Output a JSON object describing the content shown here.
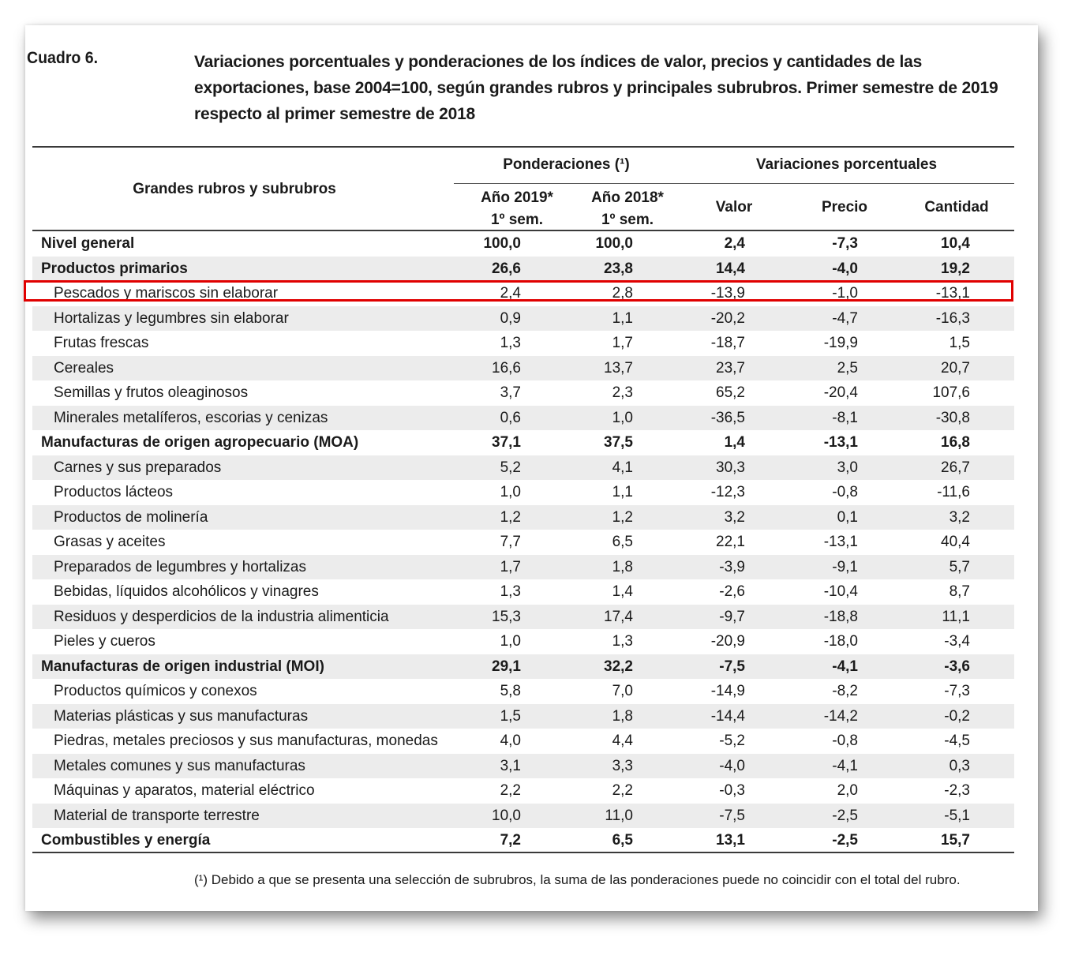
{
  "caption": {
    "label": "Cuadro 6.",
    "title": "Variaciones porcentuales y ponderaciones de los índices de valor, precios y cantidades de las exportaciones, base 2004=100, según grandes rubros y principales subrubros. Primer semestre de 2019 respecto al primer semestre de 2018"
  },
  "headers": {
    "rubros": "Grandes rubros y subrubros",
    "ponderaciones": "Ponderaciones (¹)",
    "variaciones": "Variaciones porcentuales",
    "anio2019": "Año 2019*",
    "anio2019_sub": "1º sem.",
    "anio2018": "Año 2018*",
    "anio2018_sub": "1º sem.",
    "valor": "Valor",
    "precio": "Precio",
    "cantidad": "Cantidad"
  },
  "rows": [
    {
      "name": "Nivel general",
      "level": "main",
      "p2019": "100,0",
      "p2018": "100,0",
      "valor": "2,4",
      "precio": "-7,3",
      "cantidad": "10,4"
    },
    {
      "name": "Productos primarios",
      "level": "main",
      "p2019": "26,6",
      "p2018": "23,8",
      "valor": "14,4",
      "precio": "-4,0",
      "cantidad": "19,2"
    },
    {
      "name": "Pescados y mariscos sin elaborar",
      "level": "sub",
      "p2019": "2,4",
      "p2018": "2,8",
      "valor": "-13,9",
      "precio": "-1,0",
      "cantidad": "-13,1"
    },
    {
      "name": "Hortalizas y legumbres sin elaborar",
      "level": "sub",
      "p2019": "0,9",
      "p2018": "1,1",
      "valor": "-20,2",
      "precio": "-4,7",
      "cantidad": "-16,3"
    },
    {
      "name": "Frutas frescas",
      "level": "sub",
      "p2019": "1,3",
      "p2018": "1,7",
      "valor": "-18,7",
      "precio": "-19,9",
      "cantidad": "1,5"
    },
    {
      "name": "Cereales",
      "level": "sub",
      "p2019": "16,6",
      "p2018": "13,7",
      "valor": "23,7",
      "precio": "2,5",
      "cantidad": "20,7"
    },
    {
      "name": "Semillas y frutos oleaginosos",
      "level": "sub",
      "p2019": "3,7",
      "p2018": "2,3",
      "valor": "65,2",
      "precio": "-20,4",
      "cantidad": "107,6"
    },
    {
      "name": "Minerales metalíferos, escorias y cenizas",
      "level": "sub",
      "p2019": "0,6",
      "p2018": "1,0",
      "valor": "-36,5",
      "precio": "-8,1",
      "cantidad": "-30,8"
    },
    {
      "name": "Manufacturas de origen agropecuario (MOA)",
      "level": "main",
      "p2019": "37,1",
      "p2018": "37,5",
      "valor": "1,4",
      "precio": "-13,1",
      "cantidad": "16,8"
    },
    {
      "name": "Carnes y sus preparados",
      "level": "sub",
      "p2019": "5,2",
      "p2018": "4,1",
      "valor": "30,3",
      "precio": "3,0",
      "cantidad": "26,7"
    },
    {
      "name": "Productos lácteos",
      "level": "sub",
      "p2019": "1,0",
      "p2018": "1,1",
      "valor": "-12,3",
      "precio": "-0,8",
      "cantidad": "-11,6"
    },
    {
      "name": "Productos de molinería",
      "level": "sub",
      "p2019": "1,2",
      "p2018": "1,2",
      "valor": "3,2",
      "precio": "0,1",
      "cantidad": "3,2"
    },
    {
      "name": "Grasas y aceites",
      "level": "sub",
      "p2019": "7,7",
      "p2018": "6,5",
      "valor": "22,1",
      "precio": "-13,1",
      "cantidad": "40,4"
    },
    {
      "name": "Preparados de legumbres y hortalizas",
      "level": "sub",
      "p2019": "1,7",
      "p2018": "1,8",
      "valor": "-3,9",
      "precio": "-9,1",
      "cantidad": "5,7"
    },
    {
      "name": "Bebidas, líquidos alcohólicos y vinagres",
      "level": "sub",
      "p2019": "1,3",
      "p2018": "1,4",
      "valor": "-2,6",
      "precio": "-10,4",
      "cantidad": "8,7"
    },
    {
      "name": "Residuos y desperdicios de la industria alimenticia",
      "level": "sub",
      "p2019": "15,3",
      "p2018": "17,4",
      "valor": "-9,7",
      "precio": "-18,8",
      "cantidad": "11,1"
    },
    {
      "name": "Pieles y cueros",
      "level": "sub",
      "p2019": "1,0",
      "p2018": "1,3",
      "valor": "-20,9",
      "precio": "-18,0",
      "cantidad": "-3,4"
    },
    {
      "name": "Manufacturas de origen industrial (MOI)",
      "level": "main",
      "p2019": "29,1",
      "p2018": "32,2",
      "valor": "-7,5",
      "precio": "-4,1",
      "cantidad": "-3,6"
    },
    {
      "name": "Productos químicos y conexos",
      "level": "sub",
      "p2019": "5,8",
      "p2018": "7,0",
      "valor": "-14,9",
      "precio": "-8,2",
      "cantidad": "-7,3"
    },
    {
      "name": "Materias plásticas y sus manufacturas",
      "level": "sub",
      "p2019": "1,5",
      "p2018": "1,8",
      "valor": "-14,4",
      "precio": "-14,2",
      "cantidad": "-0,2"
    },
    {
      "name": "Piedras, metales preciosos y sus manufacturas, monedas",
      "level": "sub",
      "p2019": "4,0",
      "p2018": "4,4",
      "valor": "-5,2",
      "precio": "-0,8",
      "cantidad": "-4,5"
    },
    {
      "name": "Metales comunes y sus manufacturas",
      "level": "sub",
      "p2019": "3,1",
      "p2018": "3,3",
      "valor": "-4,0",
      "precio": "-4,1",
      "cantidad": "0,3"
    },
    {
      "name": "Máquinas y aparatos, material eléctrico",
      "level": "sub",
      "p2019": "2,2",
      "p2018": "2,2",
      "valor": "-0,3",
      "precio": "2,0",
      "cantidad": "-2,3"
    },
    {
      "name": "Material de transporte terrestre",
      "level": "sub",
      "p2019": "10,0",
      "p2018": "11,0",
      "valor": "-7,5",
      "precio": "-2,5",
      "cantidad": "-5,1"
    },
    {
      "name": "Combustibles y energía",
      "level": "main",
      "p2019": "7,2",
      "p2018": "6,5",
      "valor": "13,1",
      "precio": "-2,5",
      "cantidad": "15,7"
    }
  ],
  "highlight_color": "#e00000",
  "footnote": "(¹) Debido a que se presenta una selección de subrubros, la suma de las ponderaciones puede no coincidir con el total del rubro."
}
